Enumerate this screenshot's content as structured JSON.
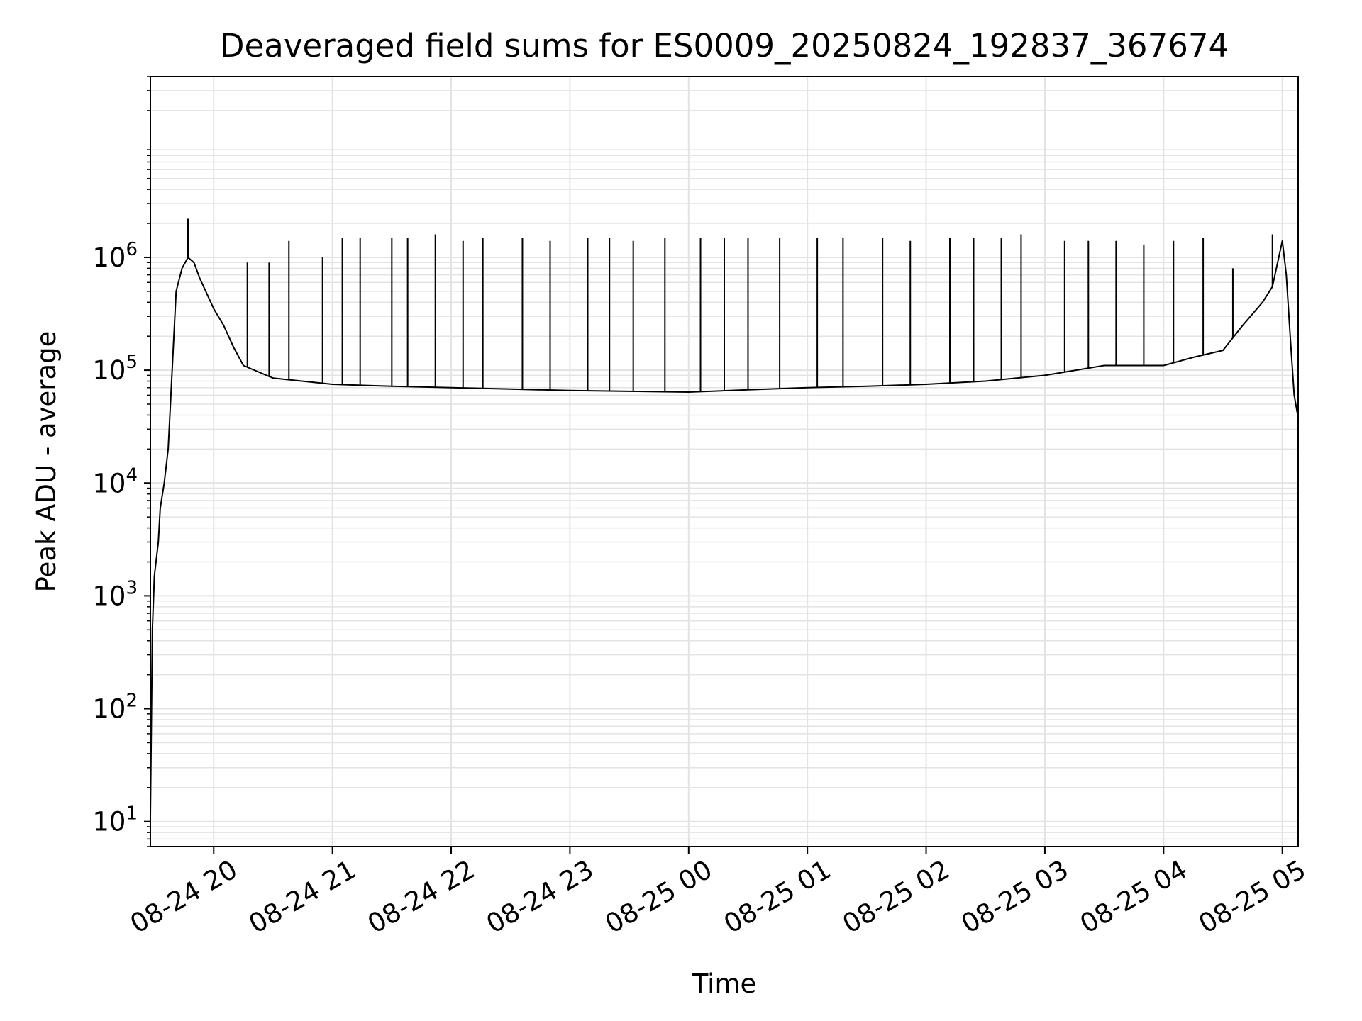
{
  "chart_data": {
    "type": "line",
    "title": "Deaveraged field sums for ES0009_20250824_192837_367674",
    "xlabel": "Time",
    "ylabel": "Peak ADU - average",
    "yscale": "log",
    "grid": true,
    "grid_minor": true,
    "line_color": "#000000",
    "grid_color": "#e3e3e3",
    "xlim": [
      "2025-08-24 19:28",
      "2025-08-25 05:08"
    ],
    "ylim": [
      6,
      40000000
    ],
    "x_ticks": [
      {
        "value": "2025-08-24 20:00",
        "label": "08-24 20"
      },
      {
        "value": "2025-08-24 21:00",
        "label": "08-24 21"
      },
      {
        "value": "2025-08-24 22:00",
        "label": "08-24 22"
      },
      {
        "value": "2025-08-24 23:00",
        "label": "08-24 23"
      },
      {
        "value": "2025-08-25 00:00",
        "label": "08-25 00"
      },
      {
        "value": "2025-08-25 01:00",
        "label": "08-25 01"
      },
      {
        "value": "2025-08-25 02:00",
        "label": "08-25 02"
      },
      {
        "value": "2025-08-25 03:00",
        "label": "08-25 03"
      },
      {
        "value": "2025-08-25 04:00",
        "label": "08-25 04"
      },
      {
        "value": "2025-08-25 05:00",
        "label": "08-25 05"
      }
    ],
    "y_ticks": [
      {
        "value": 10,
        "base": "10",
        "exp": "1"
      },
      {
        "value": 100,
        "base": "10",
        "exp": "2"
      },
      {
        "value": 1000,
        "base": "10",
        "exp": "3"
      },
      {
        "value": 10000,
        "base": "10",
        "exp": "4"
      },
      {
        "value": 100000,
        "base": "10",
        "exp": "5"
      },
      {
        "value": 1000000,
        "base": "10",
        "exp": "6"
      }
    ],
    "series": [
      {
        "x": [
          "2025-08-24 19:28",
          "2025-08-24 19:29",
          "2025-08-24 19:30",
          "2025-08-24 19:32",
          "2025-08-24 19:33",
          "2025-08-24 19:35",
          "2025-08-24 19:37",
          "2025-08-24 19:39",
          "2025-08-24 19:41",
          "2025-08-24 19:44",
          "2025-08-24 19:47",
          "2025-08-24 19:50",
          "2025-08-24 19:53",
          "2025-08-24 19:56",
          "2025-08-24 20:00",
          "2025-08-24 20:05",
          "2025-08-24 20:10",
          "2025-08-24 20:15",
          "2025-08-24 20:30",
          "2025-08-24 21:00",
          "2025-08-24 21:30",
          "2025-08-24 22:00",
          "2025-08-24 22:30",
          "2025-08-24 23:00",
          "2025-08-24 23:30",
          "2025-08-25 00:00",
          "2025-08-25 00:30",
          "2025-08-25 01:00",
          "2025-08-25 01:30",
          "2025-08-25 02:00",
          "2025-08-25 02:30",
          "2025-08-25 03:00",
          "2025-08-25 03:30",
          "2025-08-25 04:00",
          "2025-08-25 04:15",
          "2025-08-25 04:30",
          "2025-08-25 04:40",
          "2025-08-25 04:50",
          "2025-08-25 04:55",
          "2025-08-25 05:00",
          "2025-08-25 05:02",
          "2025-08-25 05:04",
          "2025-08-25 05:06",
          "2025-08-25 05:08"
        ],
        "y": [
          11,
          500,
          1500,
          3000,
          6000,
          10000,
          20000,
          100000,
          500000,
          800000,
          1000000,
          900000,
          650000,
          500000,
          350000,
          250000,
          160000,
          110000,
          85000,
          75000,
          72000,
          70000,
          68000,
          66000,
          65000,
          64000,
          67000,
          70000,
          72000,
          75000,
          80000,
          90000,
          110000,
          110000,
          130000,
          150000,
          250000,
          400000,
          550000,
          1400000,
          700000,
          200000,
          60000,
          38000
        ]
      }
    ],
    "spikes": [
      {
        "x": "2025-08-24 19:47",
        "y": 2200000
      },
      {
        "x": "2025-08-24 20:17",
        "y": 900000
      },
      {
        "x": "2025-08-24 20:28",
        "y": 900000
      },
      {
        "x": "2025-08-24 20:38",
        "y": 1400000
      },
      {
        "x": "2025-08-24 20:55",
        "y": 1000000
      },
      {
        "x": "2025-08-24 21:05",
        "y": 1500000
      },
      {
        "x": "2025-08-24 21:14",
        "y": 1500000
      },
      {
        "x": "2025-08-24 21:30",
        "y": 1500000
      },
      {
        "x": "2025-08-24 21:38",
        "y": 1500000
      },
      {
        "x": "2025-08-24 21:52",
        "y": 1600000
      },
      {
        "x": "2025-08-24 22:06",
        "y": 1400000
      },
      {
        "x": "2025-08-24 22:16",
        "y": 1500000
      },
      {
        "x": "2025-08-24 22:36",
        "y": 1500000
      },
      {
        "x": "2025-08-24 22:50",
        "y": 1400000
      },
      {
        "x": "2025-08-24 23:09",
        "y": 1500000
      },
      {
        "x": "2025-08-24 23:20",
        "y": 1500000
      },
      {
        "x": "2025-08-24 23:32",
        "y": 1400000
      },
      {
        "x": "2025-08-24 23:48",
        "y": 1500000
      },
      {
        "x": "2025-08-25 00:06",
        "y": 1500000
      },
      {
        "x": "2025-08-25 00:18",
        "y": 1500000
      },
      {
        "x": "2025-08-25 00:30",
        "y": 1500000
      },
      {
        "x": "2025-08-25 00:46",
        "y": 1500000
      },
      {
        "x": "2025-08-25 01:05",
        "y": 1500000
      },
      {
        "x": "2025-08-25 01:18",
        "y": 1500000
      },
      {
        "x": "2025-08-25 01:38",
        "y": 1500000
      },
      {
        "x": "2025-08-25 01:52",
        "y": 1400000
      },
      {
        "x": "2025-08-25 02:12",
        "y": 1500000
      },
      {
        "x": "2025-08-25 02:24",
        "y": 1500000
      },
      {
        "x": "2025-08-25 02:38",
        "y": 1500000
      },
      {
        "x": "2025-08-25 02:48",
        "y": 1600000
      },
      {
        "x": "2025-08-25 03:10",
        "y": 1400000
      },
      {
        "x": "2025-08-25 03:22",
        "y": 1400000
      },
      {
        "x": "2025-08-25 03:36",
        "y": 1400000
      },
      {
        "x": "2025-08-25 03:50",
        "y": 1300000
      },
      {
        "x": "2025-08-25 04:05",
        "y": 1400000
      },
      {
        "x": "2025-08-25 04:20",
        "y": 1500000
      },
      {
        "x": "2025-08-25 04:35",
        "y": 800000
      },
      {
        "x": "2025-08-25 04:55",
        "y": 1600000
      }
    ]
  }
}
